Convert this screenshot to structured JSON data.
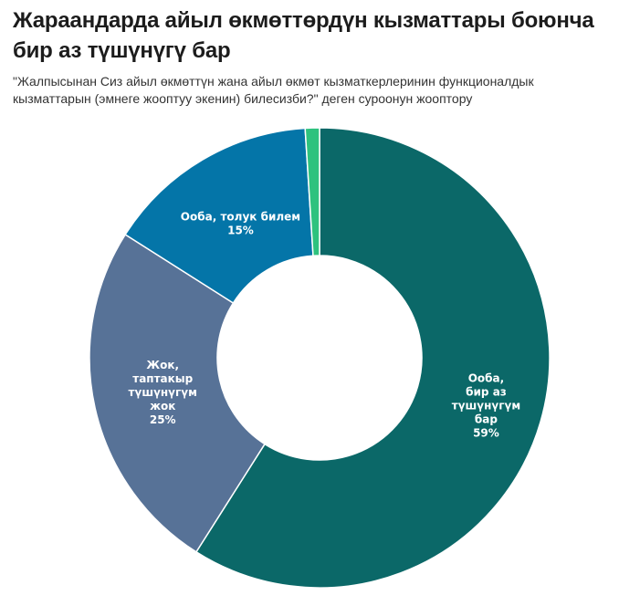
{
  "title": "Жараандарда айыл өкмөттөрдүн кызматтары боюнча бир аз түшүнүгү бар",
  "subtitle": "\"Жалпысынан Сиз айыл өкмөттүн жана айыл өкмөт кызматкерлеринин функционалдык кызматтарын (эмнеге жооптуу экенин) билесизби?\" деген суроонун жооптору",
  "chart_data": {
    "type": "pie",
    "variant": "donut",
    "unit": "%",
    "slices": [
      {
        "label": "Ооба, бир аз түшүнүгүм бар",
        "value": 59,
        "value_label": "59%",
        "color": "#0b6868"
      },
      {
        "label": "Жок, таптакыр түшүнүгүм жок",
        "value": 25,
        "value_label": "25%",
        "color": "#577297"
      },
      {
        "label": "Ооба, толук билем",
        "value": 15,
        "value_label": "15%",
        "color": "#0475a8"
      },
      {
        "label": "",
        "value": 1,
        "value_label": "",
        "color": "#2ec27e"
      }
    ]
  }
}
